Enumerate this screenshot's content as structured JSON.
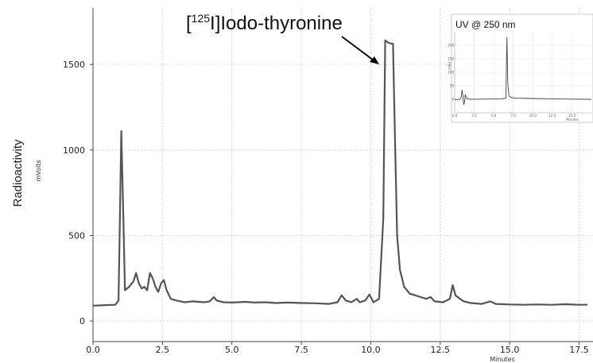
{
  "chart_data": {
    "type": "line",
    "title": "",
    "ylabel": "Radioactivity",
    "yunit": "mVolts",
    "xlabel": "Minutes",
    "xlim": [
      0,
      18
    ],
    "ylim": [
      -120,
      1830
    ],
    "xticks": [
      "0.0",
      "2.5",
      "5.0",
      "7.5",
      "10.0",
      "12.5",
      "15.0",
      "17.5"
    ],
    "yticks": [
      "0",
      "500",
      "1000",
      "1500"
    ],
    "grid": true,
    "annotation": {
      "text_prefix": "[",
      "superscript": "125",
      "text_suffix": "I]Iodo-thyronine",
      "points_to": [
        10.5,
        1500
      ]
    },
    "series": [
      {
        "values": [
          [
            0,
            90
          ],
          [
            0.8,
            95
          ],
          [
            0.92,
            120
          ],
          [
            0.98,
            700
          ],
          [
            1.02,
            1110
          ],
          [
            1.08,
            700
          ],
          [
            1.15,
            180
          ],
          [
            1.3,
            200
          ],
          [
            1.45,
            230
          ],
          [
            1.55,
            280
          ],
          [
            1.65,
            220
          ],
          [
            1.75,
            190
          ],
          [
            1.85,
            200
          ],
          [
            1.95,
            180
          ],
          [
            2.05,
            280
          ],
          [
            2.15,
            250
          ],
          [
            2.25,
            200
          ],
          [
            2.35,
            170
          ],
          [
            2.45,
            220
          ],
          [
            2.55,
            240
          ],
          [
            2.65,
            180
          ],
          [
            2.8,
            130
          ],
          [
            3.0,
            120
          ],
          [
            3.3,
            110
          ],
          [
            3.6,
            115
          ],
          [
            4.0,
            110
          ],
          [
            4.2,
            115
          ],
          [
            4.35,
            140
          ],
          [
            4.45,
            120
          ],
          [
            4.7,
            110
          ],
          [
            5.0,
            108
          ],
          [
            5.5,
            112
          ],
          [
            5.8,
            108
          ],
          [
            6.2,
            110
          ],
          [
            6.6,
            105
          ],
          [
            7.0,
            108
          ],
          [
            7.5,
            105
          ],
          [
            8.0,
            104
          ],
          [
            8.5,
            100
          ],
          [
            8.8,
            110
          ],
          [
            8.95,
            150
          ],
          [
            9.1,
            120
          ],
          [
            9.3,
            110
          ],
          [
            9.5,
            130
          ],
          [
            9.6,
            110
          ],
          [
            9.8,
            120
          ],
          [
            9.95,
            155
          ],
          [
            10.1,
            110
          ],
          [
            10.3,
            130
          ],
          [
            10.45,
            600
          ],
          [
            10.52,
            1640
          ],
          [
            10.65,
            1625
          ],
          [
            10.8,
            1620
          ],
          [
            10.88,
            1000
          ],
          [
            10.95,
            500
          ],
          [
            11.05,
            300
          ],
          [
            11.2,
            200
          ],
          [
            11.4,
            160
          ],
          [
            11.6,
            150
          ],
          [
            11.8,
            140
          ],
          [
            12.0,
            130
          ],
          [
            12.15,
            140
          ],
          [
            12.3,
            115
          ],
          [
            12.6,
            110
          ],
          [
            12.85,
            130
          ],
          [
            12.95,
            210
          ],
          [
            13.05,
            150
          ],
          [
            13.25,
            125
          ],
          [
            13.35,
            115
          ],
          [
            13.6,
            105
          ],
          [
            14.0,
            100
          ],
          [
            14.3,
            115
          ],
          [
            14.5,
            100
          ],
          [
            15.0,
            97
          ],
          [
            15.5,
            95
          ],
          [
            16.0,
            97
          ],
          [
            16.5,
            95
          ],
          [
            17.0,
            98
          ],
          [
            17.5,
            95
          ],
          [
            17.8,
            95
          ]
        ]
      }
    ],
    "inset": {
      "title": "UV @ 250 nm",
      "xlabel": "Minutes",
      "ylabel": "mAU",
      "xlim": [
        0,
        17.5
      ],
      "ylim": [
        -50,
        250
      ],
      "xticks": [
        "0.0",
        "2.5",
        "5.0",
        "7.5",
        "10.0",
        "12.5",
        "15.0"
      ],
      "yticks": [
        "0",
        "50",
        "100",
        "150",
        "200"
      ],
      "values": [
        [
          0,
          -2
        ],
        [
          0.7,
          0
        ],
        [
          0.85,
          10
        ],
        [
          0.95,
          35
        ],
        [
          1.05,
          15
        ],
        [
          1.15,
          -20
        ],
        [
          1.25,
          -12
        ],
        [
          1.35,
          18
        ],
        [
          1.45,
          8
        ],
        [
          1.6,
          2
        ],
        [
          2.0,
          0
        ],
        [
          4.0,
          1
        ],
        [
          6.0,
          2
        ],
        [
          6.55,
          4
        ],
        [
          6.68,
          230
        ],
        [
          6.8,
          60
        ],
        [
          6.95,
          12
        ],
        [
          7.3,
          6
        ],
        [
          8.0,
          4
        ],
        [
          10.0,
          3
        ],
        [
          12.0,
          2
        ],
        [
          14.0,
          1
        ],
        [
          17.5,
          0
        ]
      ]
    }
  }
}
